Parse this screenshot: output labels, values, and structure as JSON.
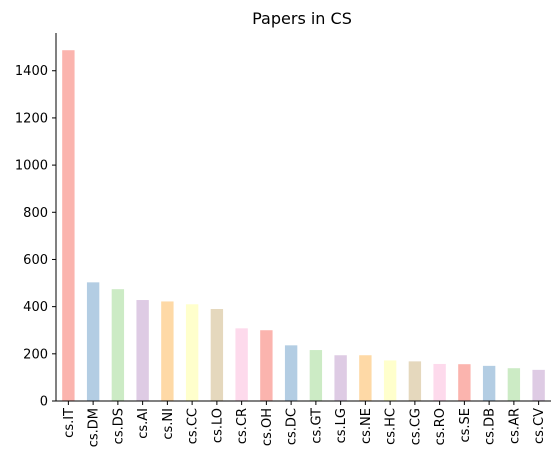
{
  "chart_data": {
    "type": "bar",
    "title": "Papers in CS",
    "xlabel": "",
    "ylabel": "",
    "categories": [
      "cs.IT",
      "cs.DM",
      "cs.DS",
      "cs.AI",
      "cs.NI",
      "cs.CC",
      "cs.LO",
      "cs.CR",
      "cs.OH",
      "cs.DC",
      "cs.GT",
      "cs.LG",
      "cs.NE",
      "cs.HC",
      "cs.CG",
      "cs.RO",
      "cs.SE",
      "cs.DB",
      "cs.AR",
      "cs.CV"
    ],
    "values": [
      1487,
      503,
      474,
      428,
      422,
      410,
      390,
      308,
      300,
      236,
      216,
      194,
      194,
      172,
      168,
      157,
      156,
      149,
      139,
      132
    ],
    "colors": [
      "#fbb4ae",
      "#b3cde3",
      "#ccebc5",
      "#decbe4",
      "#fed9a6",
      "#ffffcc",
      "#e5d8bd",
      "#fddaec"
    ],
    "ylim": [
      0,
      1560
    ],
    "yticks": [
      0,
      200,
      400,
      600,
      800,
      1000,
      1200,
      1400
    ],
    "grid": false,
    "legend": "none"
  }
}
